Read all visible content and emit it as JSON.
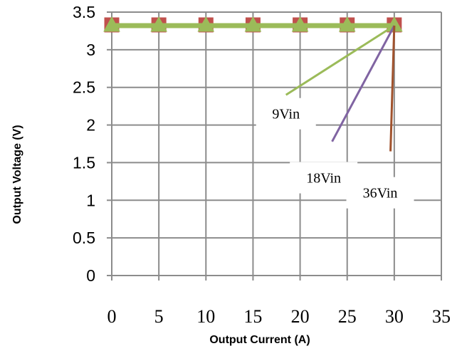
{
  "chart_data": {
    "type": "line",
    "title": "",
    "xlabel": "Output Current (A)",
    "ylabel": "Output Voltage (V)",
    "xlim": [
      0,
      35
    ],
    "ylim": [
      0,
      3.5
    ],
    "x_ticks": [
      "0",
      "5",
      "10",
      "15",
      "20",
      "25",
      "30",
      "35"
    ],
    "y_ticks": [
      "0",
      "0.5",
      "1",
      "1.5",
      "2",
      "2.5",
      "3",
      "3.5"
    ],
    "grid": true,
    "legend": "none",
    "series": [
      {
        "marker": "square",
        "color": "#c0504d",
        "x": [
          0,
          5,
          10,
          15,
          20,
          25,
          30
        ],
        "y": [
          3.33,
          3.33,
          3.33,
          3.33,
          3.33,
          3.33,
          3.33
        ]
      },
      {
        "marker": "triangle",
        "color": "#9bbb59",
        "x": [
          0,
          5,
          10,
          15,
          20,
          25,
          30
        ],
        "y": [
          3.32,
          3.32,
          3.32,
          3.32,
          3.32,
          3.32,
          3.32
        ]
      }
    ],
    "annotations": [
      {
        "text": "9Vin",
        "color": "#9bbb59",
        "point": [
          30,
          3.32
        ],
        "label_pos": [
          18.5,
          2.15
        ],
        "tail": [
          18.5,
          2.4
        ]
      },
      {
        "text": "18Vin",
        "color": "#8064a2",
        "point": [
          30,
          3.32
        ],
        "label_pos": [
          22.5,
          1.3
        ],
        "tail": [
          23.4,
          1.78
        ]
      },
      {
        "text": "36Vin",
        "color": "#a0522d",
        "point": [
          30,
          3.32
        ],
        "label_pos": [
          28.5,
          1.1
        ],
        "tail": [
          29.6,
          1.65
        ]
      }
    ]
  }
}
